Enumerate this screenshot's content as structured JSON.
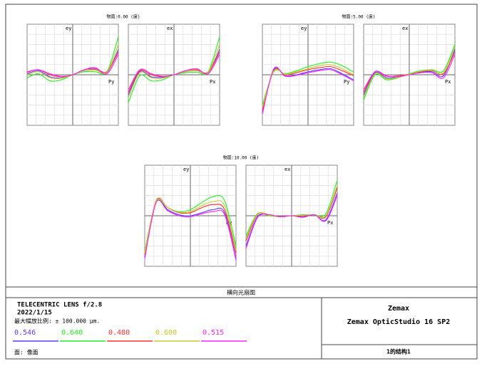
{
  "chart_data": [
    {
      "type": "line",
      "title": "物面:0.00 (度)",
      "y_label": "ey",
      "x_label": "Py",
      "xlim": [
        -1,
        1
      ],
      "ylim": [
        -1,
        1
      ],
      "x": [
        -1,
        -0.75,
        -0.5,
        -0.25,
        0,
        0.25,
        0.5,
        0.75,
        1
      ],
      "series": [
        {
          "values": [
            0.02,
            0.08,
            -0.04,
            -0.06,
            0,
            0.08,
            0.1,
            0.04,
            0.5
          ]
        },
        {
          "values": [
            -0.06,
            0.02,
            -0.12,
            -0.1,
            0,
            0.06,
            0.06,
            0.06,
            0.75
          ]
        },
        {
          "values": [
            0.05,
            0.1,
            0,
            -0.04,
            0,
            0.1,
            0.12,
            0.06,
            0.45
          ]
        },
        {
          "values": [
            0,
            0.06,
            -0.06,
            -0.07,
            0,
            0.08,
            0.09,
            0.05,
            0.6
          ]
        },
        {
          "values": [
            0.06,
            0.1,
            0.02,
            -0.03,
            0,
            0.1,
            0.14,
            0.02,
            0.4
          ]
        }
      ]
    },
    {
      "type": "line",
      "y_label": "ex",
      "x_label": "Px",
      "xlim": [
        -1,
        1
      ],
      "ylim": [
        -1,
        1
      ],
      "x": [
        -1,
        -0.75,
        -0.5,
        -0.25,
        0,
        0.25,
        0.5,
        0.75,
        1
      ],
      "series": [
        {
          "values": [
            -0.4,
            0.06,
            -0.04,
            -0.05,
            0,
            0.06,
            0.08,
            0.04,
            0.5
          ]
        },
        {
          "values": [
            -0.55,
            -0.02,
            -0.12,
            -0.1,
            0,
            0.04,
            0.05,
            0.06,
            0.75
          ]
        },
        {
          "values": [
            -0.35,
            0.08,
            0,
            -0.04,
            0,
            0.08,
            0.1,
            0.05,
            0.45
          ]
        },
        {
          "values": [
            -0.45,
            0.04,
            -0.06,
            -0.07,
            0,
            0.06,
            0.08,
            0.05,
            0.6
          ]
        },
        {
          "values": [
            -0.3,
            0.1,
            0.02,
            -0.03,
            0,
            0.08,
            0.12,
            0.02,
            0.4
          ]
        }
      ]
    },
    {
      "type": "line",
      "title": "物面:5.00 (度)",
      "y_label": "ey",
      "x_label": "Py",
      "xlim": [
        -1,
        1
      ],
      "ylim": [
        -1,
        1
      ],
      "x": [
        -1,
        -0.75,
        -0.5,
        -0.25,
        0,
        0.25,
        0.5,
        0.75,
        1
      ],
      "series": [
        {
          "values": [
            -0.75,
            0.1,
            -0.02,
            0,
            0.06,
            0.1,
            0.12,
            0.02,
            -0.1
          ]
        },
        {
          "values": [
            -0.6,
            0.06,
            0.02,
            0.08,
            0.16,
            0.22,
            0.25,
            0.18,
            0.05
          ]
        },
        {
          "values": [
            -0.7,
            0.08,
            0,
            0.04,
            0.1,
            0.14,
            0.16,
            0.08,
            -0.02
          ]
        },
        {
          "values": [
            -0.65,
            0.07,
            0.01,
            0.06,
            0.12,
            0.18,
            0.2,
            0.12,
            0
          ]
        },
        {
          "values": [
            -0.78,
            0.12,
            -0.03,
            -0.01,
            0.04,
            0.08,
            0.1,
            0,
            -0.12
          ]
        }
      ]
    },
    {
      "type": "line",
      "y_label": "ex",
      "x_label": "Px",
      "xlim": [
        -1,
        1
      ],
      "ylim": [
        -1,
        1
      ],
      "x": [
        -1,
        -0.75,
        -0.5,
        -0.25,
        0,
        0.25,
        0.5,
        0.75,
        1
      ],
      "series": [
        {
          "values": [
            -0.4,
            0.04,
            -0.06,
            -0.04,
            0,
            0.05,
            0.06,
            -0.02,
            0.5
          ]
        },
        {
          "values": [
            -0.5,
            0,
            -0.1,
            -0.06,
            0.02,
            0.08,
            0.1,
            0.08,
            0.6
          ]
        },
        {
          "values": [
            -0.35,
            0.06,
            -0.03,
            -0.02,
            0.01,
            0.06,
            0.08,
            0.02,
            0.45
          ]
        },
        {
          "values": [
            -0.45,
            0.02,
            -0.08,
            -0.05,
            0.01,
            0.07,
            0.09,
            0.04,
            0.55
          ]
        },
        {
          "values": [
            -0.3,
            0.06,
            -0.02,
            -0.04,
            0,
            0.04,
            0.04,
            -0.06,
            0.4
          ]
        }
      ]
    },
    {
      "type": "line",
      "title": "物面:10.00 (度)",
      "y_label": "ey",
      "x_label": "Py",
      "xlim": [
        -1,
        1
      ],
      "ylim": [
        -1,
        1
      ],
      "x": [
        -1,
        -0.75,
        -0.5,
        -0.25,
        0,
        0.25,
        0.5,
        0.75,
        1
      ],
      "series": [
        {
          "values": [
            -0.82,
            0.28,
            0.12,
            0.02,
            0,
            0.06,
            0.12,
            0.06,
            -0.85
          ]
        },
        {
          "values": [
            -0.7,
            0.28,
            0.16,
            0.08,
            0.12,
            0.26,
            0.38,
            0.3,
            -0.6
          ]
        },
        {
          "values": [
            -0.78,
            0.3,
            0.16,
            0.06,
            0.06,
            0.16,
            0.22,
            0.12,
            -0.75
          ]
        },
        {
          "values": [
            -0.74,
            0.29,
            0.16,
            0.07,
            0.08,
            0.2,
            0.28,
            0.2,
            -0.68
          ]
        },
        {
          "values": [
            -0.85,
            0.26,
            0.1,
            0,
            -0.02,
            0.04,
            0.08,
            0.02,
            -0.88
          ]
        }
      ]
    },
    {
      "type": "line",
      "y_label": "ex",
      "x_label": "Px",
      "xlim": [
        -1,
        1
      ],
      "ylim": [
        -1,
        1
      ],
      "x": [
        -1,
        -0.75,
        -0.5,
        -0.25,
        0,
        0.25,
        0.5,
        0.75,
        1
      ],
      "series": [
        {
          "values": [
            -0.6,
            -0.02,
            0.02,
            -0.02,
            0,
            -0.02,
            0.02,
            -0.08,
            0.45
          ]
        },
        {
          "values": [
            -0.4,
            0.04,
            0,
            -0.02,
            0,
            0.02,
            0.02,
            0.04,
            0.7
          ]
        },
        {
          "values": [
            -0.5,
            0.02,
            0.02,
            -0.02,
            0,
            0,
            0.02,
            -0.02,
            0.55
          ]
        },
        {
          "values": [
            -0.45,
            0.03,
            0.01,
            -0.02,
            0,
            0.01,
            0.02,
            0,
            0.6
          ]
        },
        {
          "values": [
            -0.65,
            -0.04,
            0.02,
            -0.02,
            0,
            -0.03,
            0.02,
            -0.1,
            0.4
          ]
        }
      ]
    }
  ],
  "footer": {
    "title": "横向光扇图",
    "lens": "TELECENTRIC LENS f/2.8",
    "date": "2022/1/15",
    "scale": "最大幅放比例: ± 100.000 µm.",
    "wavelengths": [
      {
        "label": "0.546",
        "color": "#5a3cff"
      },
      {
        "label": "0.640",
        "color": "#22ee22"
      },
      {
        "label": "0.480",
        "color": "#ff3030"
      },
      {
        "label": "0.600",
        "color": "#c8c830"
      },
      {
        "label": "0.515",
        "color": "#ff20ff"
      }
    ],
    "surface": "面: 像面",
    "company": "Zemax",
    "product": "Zemax OpticStudio 16 SP2",
    "config": "1的结构1"
  }
}
